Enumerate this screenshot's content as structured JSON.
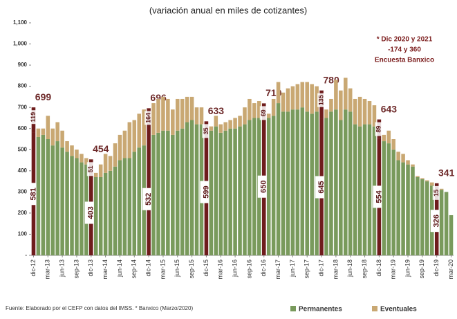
{
  "chart_data": {
    "type": "bar",
    "stacked": true,
    "title": "(variación anual en miles de cotizantes)",
    "annotation": [
      "* Dic 2020 y 2021",
      "-174 y 360",
      "Encuesta Banxico"
    ],
    "source": "Fuente: Elaborado por el CEFP con datos del IMSS. * Banxico (Marzo/2020)",
    "categories": [
      "dic-12",
      null,
      null,
      "mar-13",
      null,
      null,
      "jun-13",
      null,
      null,
      "sep-13",
      null,
      null,
      "dic-13",
      null,
      null,
      "mar-14",
      null,
      null,
      "jun-14",
      null,
      null,
      "sep-14",
      null,
      null,
      "dic-14",
      null,
      null,
      "mar-15",
      null,
      null,
      "jun-15",
      null,
      null,
      "sep-15",
      null,
      null,
      "dic-15",
      null,
      null,
      "mar-16",
      null,
      null,
      "jun-16",
      null,
      null,
      "sep-16",
      null,
      null,
      "dic-16",
      null,
      null,
      "mar-17",
      null,
      null,
      "jun-17",
      null,
      null,
      "sep-17",
      null,
      null,
      "dic-17",
      null,
      null,
      "mar-18",
      null,
      null,
      "jun-18",
      null,
      null,
      "sep-18",
      null,
      null,
      "dic-18",
      null,
      null,
      "mar-19",
      null,
      null,
      "jun-19",
      null,
      null,
      "sep-19",
      null,
      null,
      "dic-19",
      null,
      null,
      "mar-20"
    ],
    "series": [
      {
        "name": "Permanentes",
        "color": "#799a5c",
        "values": [
          581,
          560,
          570,
          550,
          520,
          540,
          510,
          490,
          470,
          460,
          440,
          430,
          403,
          370,
          370,
          390,
          400,
          420,
          450,
          460,
          460,
          490,
          510,
          520,
          532,
          570,
          580,
          590,
          590,
          570,
          590,
          600,
          630,
          640,
          620,
          620,
          599,
          590,
          610,
          580,
          590,
          600,
          600,
          610,
          620,
          640,
          650,
          650,
          650,
          650,
          660,
          720,
          680,
          680,
          690,
          690,
          700,
          680,
          670,
          680,
          645,
          650,
          680,
          690,
          640,
          690,
          680,
          620,
          610,
          620,
          620,
          610,
          554,
          540,
          530,
          500,
          450,
          440,
          430,
          420,
          370,
          360,
          350,
          330,
          326,
          310,
          300,
          190
        ]
      },
      {
        "name": "Eventuales",
        "color": "#c9a873",
        "values": [
          119,
          40,
          30,
          110,
          80,
          90,
          80,
          50,
          50,
          40,
          40,
          30,
          51,
          20,
          60,
          90,
          70,
          110,
          120,
          130,
          170,
          150,
          160,
          170,
          164,
          150,
          160,
          160,
          150,
          120,
          150,
          140,
          120,
          110,
          80,
          80,
          35,
          20,
          50,
          40,
          40,
          40,
          50,
          50,
          80,
          100,
          70,
          80,
          69,
          20,
          80,
          100,
          90,
          110,
          110,
          120,
          120,
          140,
          140,
          120,
          135,
          40,
          60,
          140,
          140,
          150,
          110,
          120,
          140,
          120,
          110,
          100,
          89,
          30,
          60,
          50,
          40,
          40,
          20,
          10,
          5,
          5,
          5,
          15,
          15,
          5,
          0,
          0
        ]
      }
    ],
    "highlight_color": "#6e1c1c",
    "december_totals": {
      "categories": [
        "dic-12",
        "dic-13",
        "dic-14",
        "dic-15",
        "dic-16",
        "dic-17",
        "dic-18",
        "dic-19"
      ],
      "values": [
        699,
        454,
        696,
        633,
        719,
        780,
        643,
        341
      ]
    },
    "ylim": [
      0,
      1100
    ],
    "yticks": [
      {
        "value": 0,
        "label": "-"
      },
      100,
      200,
      300,
      400,
      500,
      600,
      700,
      800,
      900,
      {
        "value": 1000,
        "label": "1,000"
      },
      {
        "value": 1100,
        "label": "1,100"
      }
    ],
    "legend": "bottom-right"
  }
}
